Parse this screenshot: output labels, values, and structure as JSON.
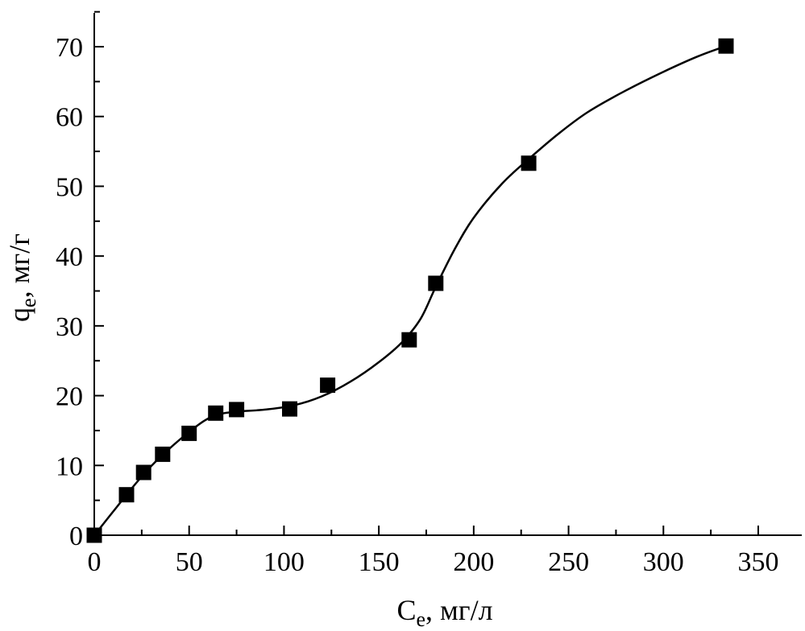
{
  "chart_data": {
    "type": "scatter",
    "xlabel": {
      "main": "C",
      "sub": "e",
      "unit": ", мг/л"
    },
    "ylabel": {
      "main": "q",
      "sub": "e",
      "unit": ", мг/г"
    },
    "xlim": [
      0,
      370
    ],
    "ylim": [
      0,
      75
    ],
    "x_ticks": [
      0,
      50,
      100,
      150,
      200,
      250,
      300,
      350
    ],
    "y_ticks": [
      0,
      10,
      20,
      30,
      40,
      50,
      60,
      70
    ],
    "series": [
      {
        "marker": "square",
        "color": "#000000",
        "points": [
          {
            "x": 0,
            "y": 0
          },
          {
            "x": 17,
            "y": 5.8
          },
          {
            "x": 26,
            "y": 9.0
          },
          {
            "x": 36,
            "y": 11.6
          },
          {
            "x": 50,
            "y": 14.6
          },
          {
            "x": 64,
            "y": 17.5
          },
          {
            "x": 75,
            "y": 18.0
          },
          {
            "x": 103,
            "y": 18.1
          },
          {
            "x": 123,
            "y": 21.5
          },
          {
            "x": 166,
            "y": 28.0
          },
          {
            "x": 180,
            "y": 36.1
          },
          {
            "x": 229,
            "y": 53.3
          },
          {
            "x": 333,
            "y": 70.1
          }
        ]
      }
    ],
    "fit_curve": {
      "color": "#000000",
      "points": [
        {
          "x": 0,
          "y": 0
        },
        {
          "x": 10,
          "y": 3.4
        },
        {
          "x": 20,
          "y": 6.8
        },
        {
          "x": 30,
          "y": 9.9
        },
        {
          "x": 40,
          "y": 12.5
        },
        {
          "x": 50,
          "y": 14.8
        },
        {
          "x": 58,
          "y": 16.4
        },
        {
          "x": 65,
          "y": 17.3
        },
        {
          "x": 75,
          "y": 17.7
        },
        {
          "x": 90,
          "y": 18.0
        },
        {
          "x": 105,
          "y": 18.6
        },
        {
          "x": 120,
          "y": 19.9
        },
        {
          "x": 135,
          "y": 22.0
        },
        {
          "x": 150,
          "y": 24.8
        },
        {
          "x": 162,
          "y": 27.6
        },
        {
          "x": 172,
          "y": 31.0
        },
        {
          "x": 180,
          "y": 35.6
        },
        {
          "x": 190,
          "y": 41.0
        },
        {
          "x": 200,
          "y": 45.5
        },
        {
          "x": 215,
          "y": 50.4
        },
        {
          "x": 229,
          "y": 53.9
        },
        {
          "x": 245,
          "y": 57.6
        },
        {
          "x": 260,
          "y": 60.6
        },
        {
          "x": 280,
          "y": 63.7
        },
        {
          "x": 300,
          "y": 66.4
        },
        {
          "x": 318,
          "y": 68.6
        },
        {
          "x": 333,
          "y": 70.1
        }
      ]
    }
  }
}
